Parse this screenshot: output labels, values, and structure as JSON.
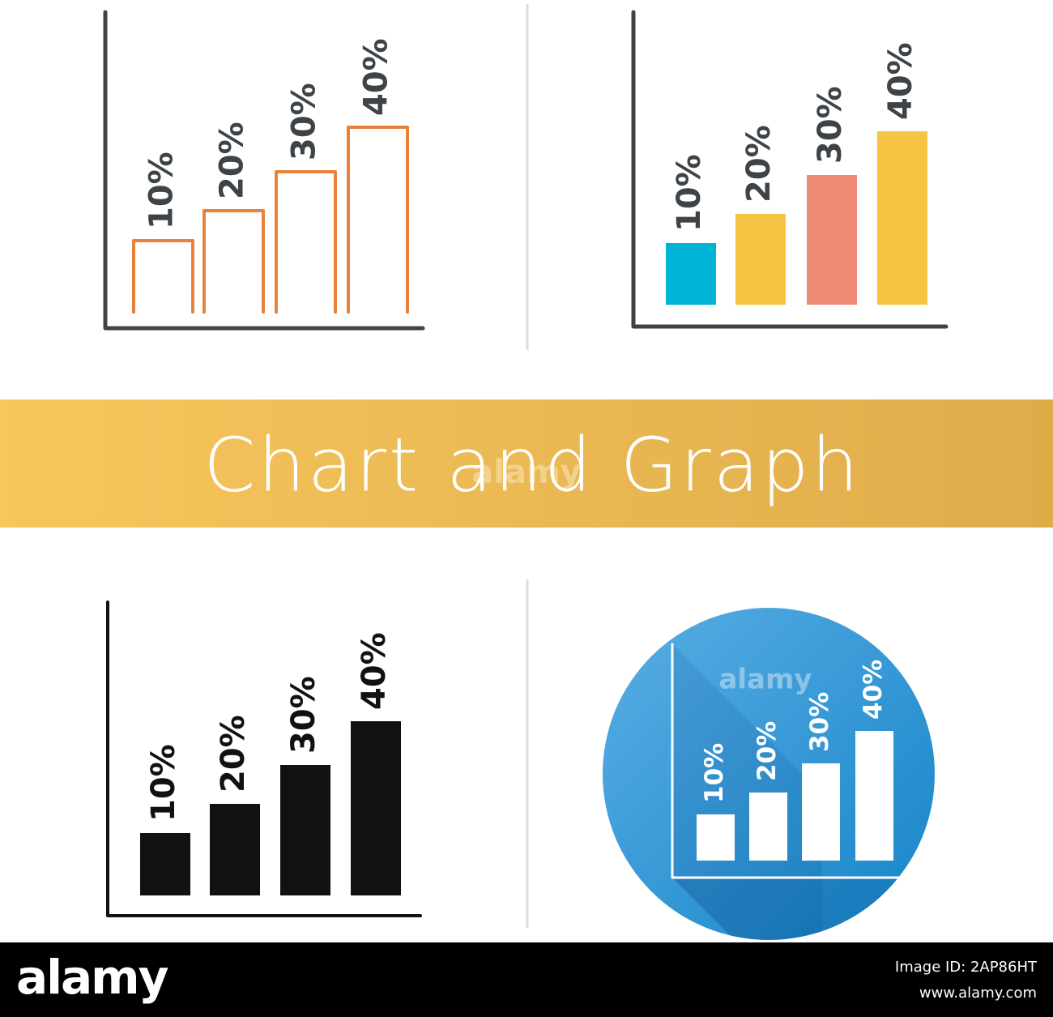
{
  "banner": {
    "title": "Chart and Graph"
  },
  "icons": [
    {
      "labels": [
        "10%",
        "20%",
        "30%",
        "40%"
      ]
    },
    {
      "labels": [
        "10%",
        "20%",
        "30%",
        "40%"
      ]
    },
    {
      "labels": [
        "10%",
        "20%",
        "30%",
        "40%"
      ]
    },
    {
      "labels": [
        "10%",
        "20%",
        "30%",
        "40%"
      ]
    }
  ],
  "watermark": "alamy",
  "footer": {
    "logo": "alamy",
    "image_id": "Image ID: 2AP86HT",
    "url": "www.alamy.com"
  }
}
